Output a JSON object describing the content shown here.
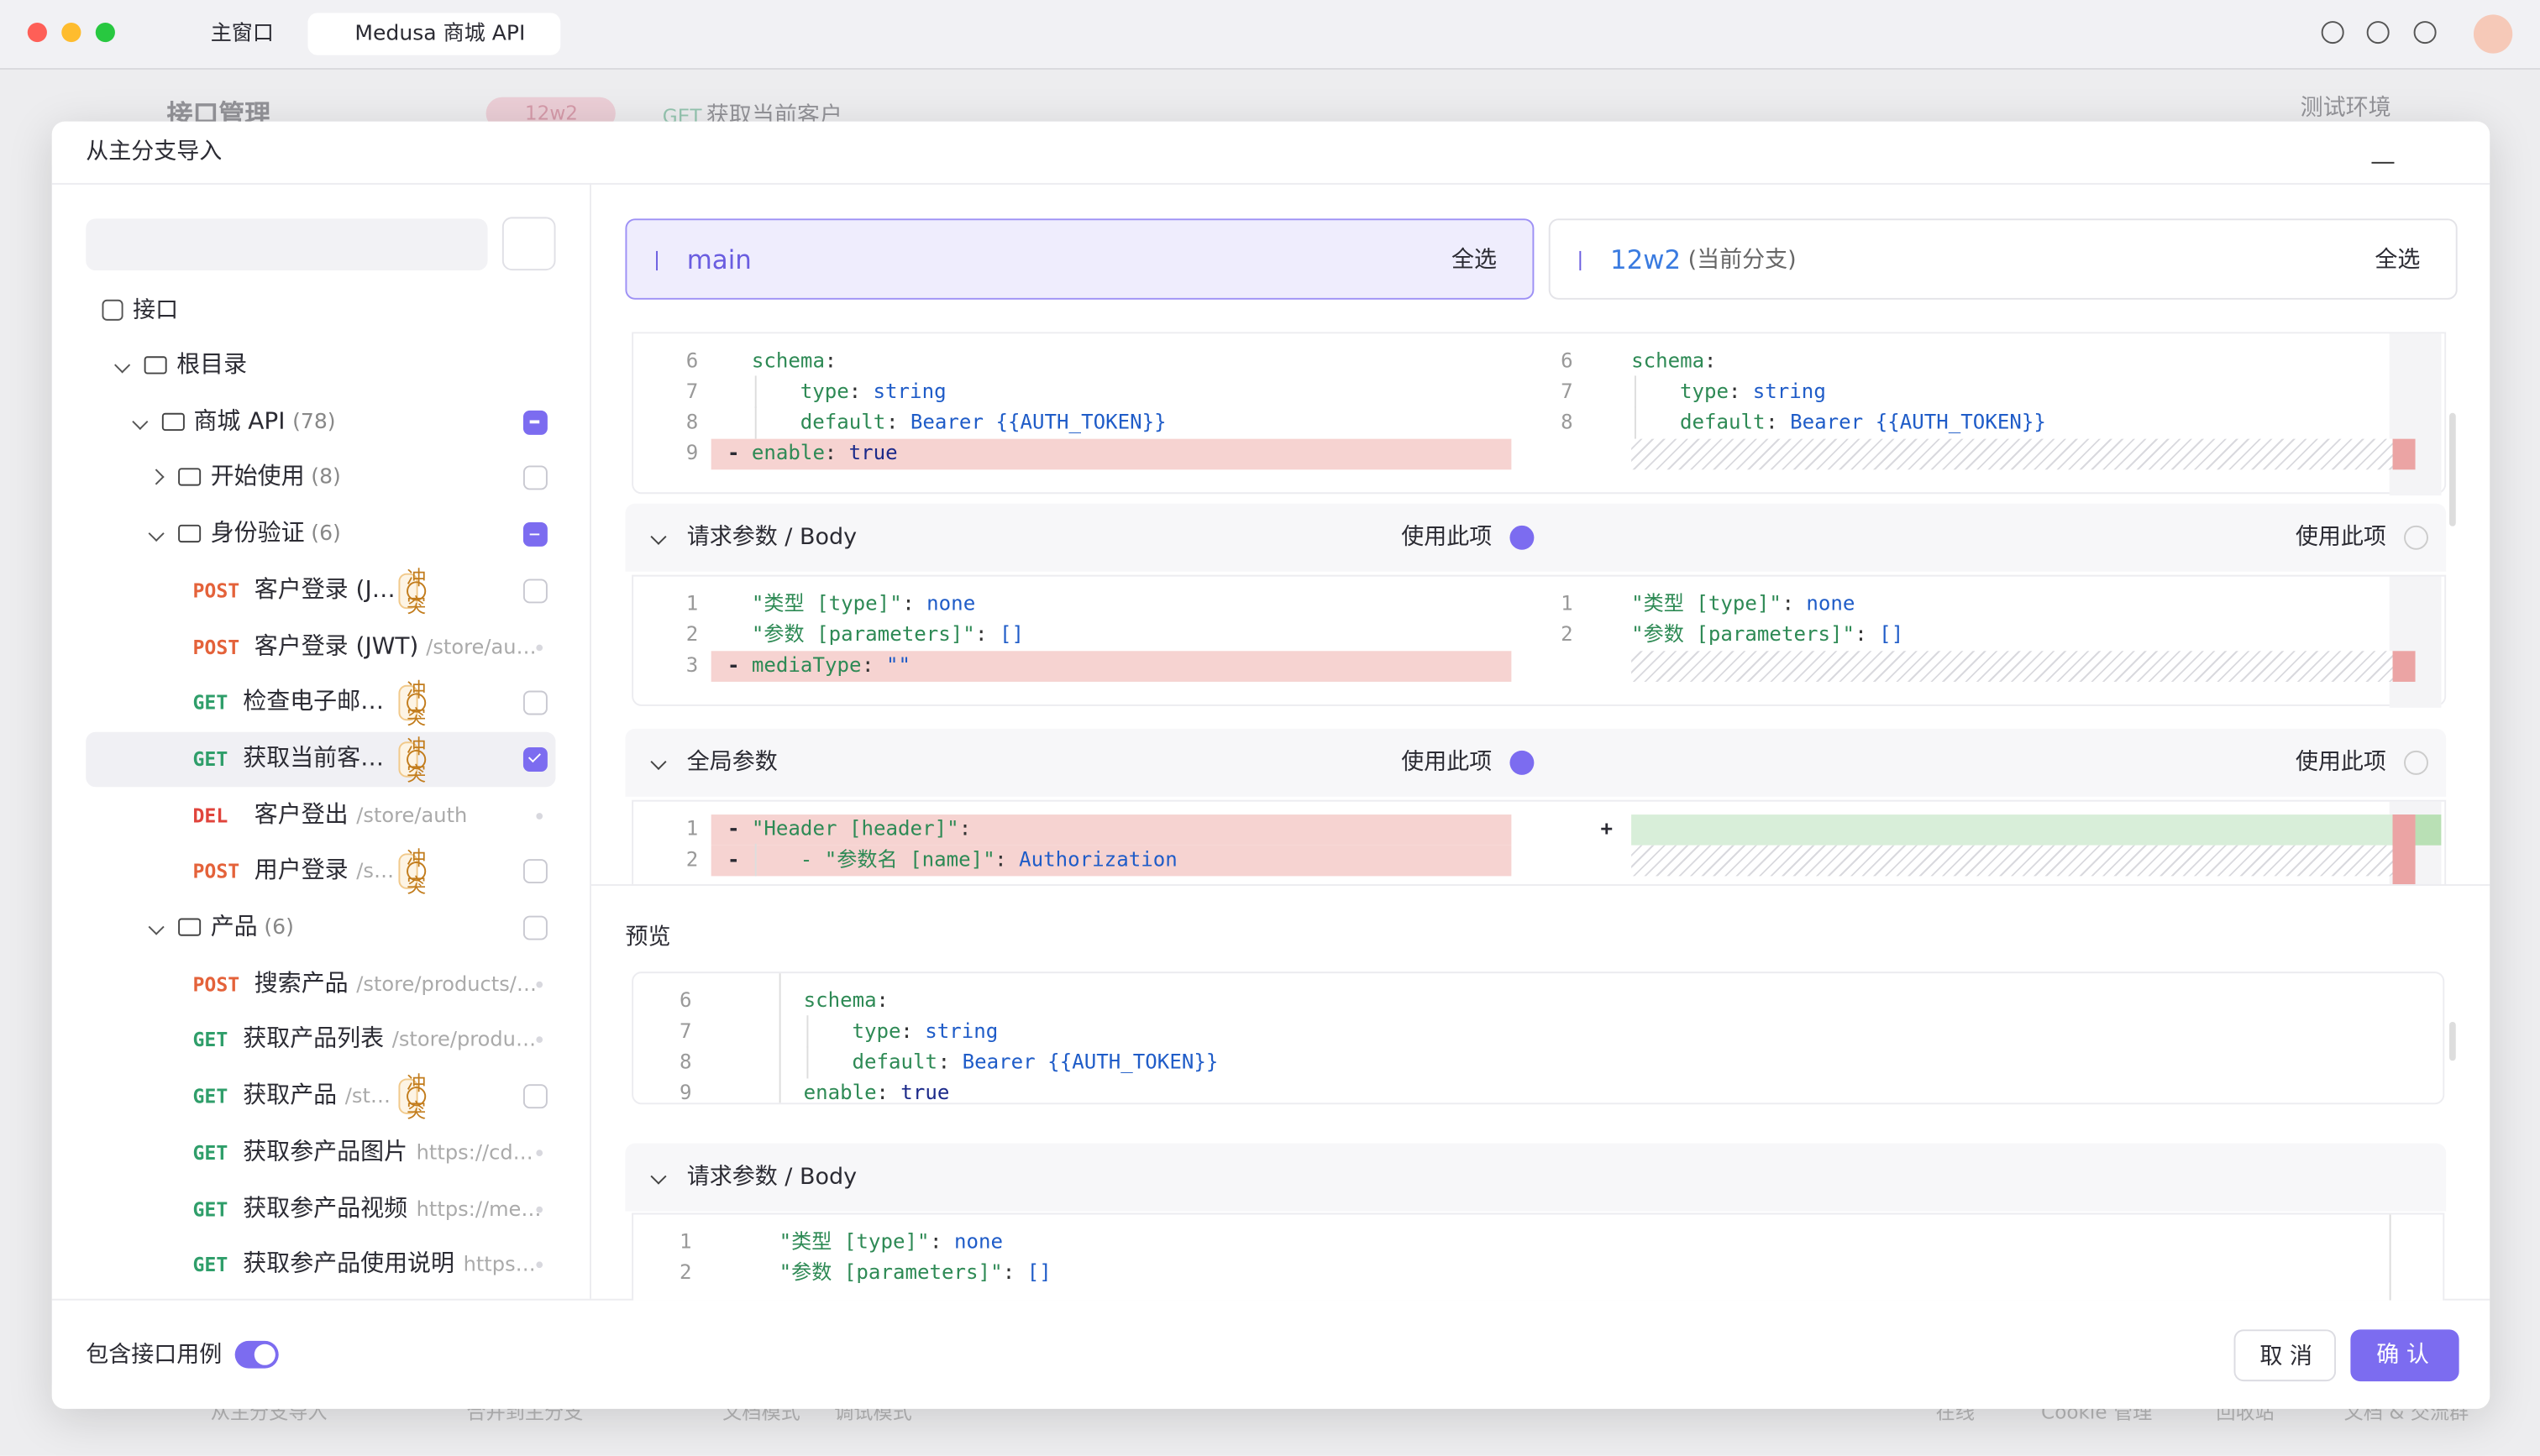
{
  "window": {
    "tabs": [
      "主窗口",
      "Medusa 商城 API"
    ]
  },
  "background": {
    "title": "接口管理",
    "branch": "12w2",
    "tab_method": "GET",
    "tab_title": "获取当前客户",
    "env": "测试环境",
    "bottom": [
      "从主分支导入",
      "合并到主分支",
      "文档模式",
      "调试模式",
      "在线",
      "Cookie 管理",
      "回收站",
      "文档 & 交流群"
    ]
  },
  "dialog": {
    "title": "从主分支导入",
    "root_label": "接口",
    "tree": [
      {
        "depth": 0,
        "kind": "folder",
        "label": "根目录",
        "open": true
      },
      {
        "depth": 1,
        "kind": "folder",
        "label": "商城 API",
        "count": "(78)",
        "open": true,
        "check": "partial"
      },
      {
        "depth": 2,
        "kind": "folder",
        "label": "开始使用",
        "count": "(8)",
        "open": false,
        "check": "empty"
      },
      {
        "depth": 2,
        "kind": "folder",
        "label": "身份验证",
        "count": "(6)",
        "open": true,
        "check": "partial"
      },
      {
        "depth": 3,
        "kind": "api",
        "method": "POST",
        "label": "客户登录 (J…",
        "badge": "冲突",
        "check": "empty"
      },
      {
        "depth": 3,
        "kind": "api",
        "method": "POST",
        "label": "客户登录 (JWT)",
        "path": "/store/au…"
      },
      {
        "depth": 3,
        "kind": "api",
        "method": "GET",
        "label": "检查电子邮…",
        "badge": "冲突",
        "check": "empty"
      },
      {
        "depth": 3,
        "kind": "api",
        "method": "GET",
        "label": "获取当前客…",
        "badge": "冲突",
        "check": "checked",
        "selected": true
      },
      {
        "depth": 3,
        "kind": "api",
        "method": "DEL",
        "label": "客户登出",
        "path": "/store/auth"
      },
      {
        "depth": 3,
        "kind": "api",
        "method": "POST",
        "label": "用户登录",
        "path": "/s…",
        "badge": "冲突",
        "check": "empty"
      },
      {
        "depth": 2,
        "kind": "folder",
        "label": "产品",
        "count": "(6)",
        "open": true,
        "check": "empty"
      },
      {
        "depth": 3,
        "kind": "api",
        "method": "POST",
        "label": "搜索产品",
        "path": "/store/products/…"
      },
      {
        "depth": 3,
        "kind": "api",
        "method": "GET",
        "label": "获取产品列表",
        "path": "/store/produ…"
      },
      {
        "depth": 3,
        "kind": "api",
        "method": "GET",
        "label": "获取产品",
        "path": "/st…",
        "badge": "冲突",
        "check": "empty"
      },
      {
        "depth": 3,
        "kind": "api",
        "method": "GET",
        "label": "获取参产品图片",
        "path": "https://cd…"
      },
      {
        "depth": 3,
        "kind": "api",
        "method": "GET",
        "label": "获取参产品视频",
        "path": "https://me…"
      },
      {
        "depth": 3,
        "kind": "api",
        "method": "GET",
        "label": "获取参产品使用说明",
        "path": "https…"
      }
    ],
    "include_cases": "包含接口用例",
    "cancel": "取 消",
    "confirm": "确 认"
  },
  "diff": {
    "left": {
      "branch": "main",
      "select_all": "全选"
    },
    "right": {
      "branch": "12w2",
      "note": "(当前分支)",
      "select_all": "全选"
    },
    "use_item": "使用此项",
    "blocks": [
      {
        "title": null,
        "left": [
          {
            "n": 6,
            "indent": 0,
            "tokens": [
              "schema",
              ":"
            ]
          },
          {
            "n": 7,
            "indent": 1,
            "tokens": [
              "type",
              ": ",
              "string"
            ]
          },
          {
            "n": 8,
            "indent": 1,
            "tokens": [
              "default",
              ": ",
              "Bearer {{AUTH_TOKEN}}"
            ]
          },
          {
            "n": 9,
            "indent": 0,
            "marker": "-",
            "tokens": [
              "enable",
              ": ",
              "true"
            ]
          }
        ],
        "right": [
          {
            "n": 6,
            "indent": 0,
            "tokens": [
              "schema",
              ":"
            ]
          },
          {
            "n": 7,
            "indent": 1,
            "tokens": [
              "type",
              ": ",
              "string"
            ]
          },
          {
            "n": 8,
            "indent": 1,
            "tokens": [
              "default",
              ": ",
              "Bearer {{AUTH_TOKEN}}"
            ]
          },
          {
            "hatch": true
          }
        ]
      },
      {
        "title": "请求参数 / Body",
        "left_use": true,
        "left": [
          {
            "n": 1,
            "indent": 0,
            "tokens": [
              "\"类型 [type]\"",
              ": ",
              "none"
            ]
          },
          {
            "n": 2,
            "indent": 0,
            "tokens": [
              "\"参数 [parameters]\"",
              ": ",
              "[]"
            ]
          },
          {
            "n": 3,
            "indent": 0,
            "marker": "-",
            "tokens": [
              "mediaType",
              ": ",
              "\"\""
            ]
          }
        ],
        "right": [
          {
            "n": 1,
            "indent": 0,
            "tokens": [
              "\"类型 [type]\"",
              ": ",
              "none"
            ]
          },
          {
            "n": 2,
            "indent": 0,
            "tokens": [
              "\"参数 [parameters]\"",
              ": ",
              "[]"
            ]
          },
          {
            "hatch": true
          }
        ]
      },
      {
        "title": "全局参数",
        "left_use": true,
        "left": [
          {
            "n": 1,
            "indent": 0,
            "marker": "-",
            "tokens": [
              "\"Header [header]\"",
              ":"
            ]
          },
          {
            "n": 2,
            "indent": 1,
            "marker": "-",
            "tokens": [
              "- \"参数名 [name]\"",
              ": ",
              "Authorization"
            ]
          }
        ],
        "right": [
          {
            "add": true,
            "marker": "+"
          },
          {
            "hatch": true
          }
        ]
      }
    ]
  },
  "preview": {
    "label": "预览",
    "lines": [
      {
        "n": 6,
        "indent": 0,
        "tokens": [
          "schema",
          ":"
        ]
      },
      {
        "n": 7,
        "indent": 1,
        "tokens": [
          "type",
          ": ",
          "string"
        ]
      },
      {
        "n": 8,
        "indent": 1,
        "tokens": [
          "default",
          ": ",
          "Bearer {{AUTH_TOKEN}}"
        ]
      },
      {
        "n": 9,
        "indent": 0,
        "tokens": [
          "enable",
          ": ",
          "true"
        ]
      }
    ],
    "section": "请求参数 / Body",
    "section_lines": [
      {
        "n": 1,
        "indent": 0,
        "tokens": [
          "\"类型 [type]\"",
          ": ",
          "none"
        ]
      },
      {
        "n": 2,
        "indent": 0,
        "tokens": [
          "\"参数 [parameters]\"",
          ": ",
          "[]"
        ]
      }
    ]
  }
}
